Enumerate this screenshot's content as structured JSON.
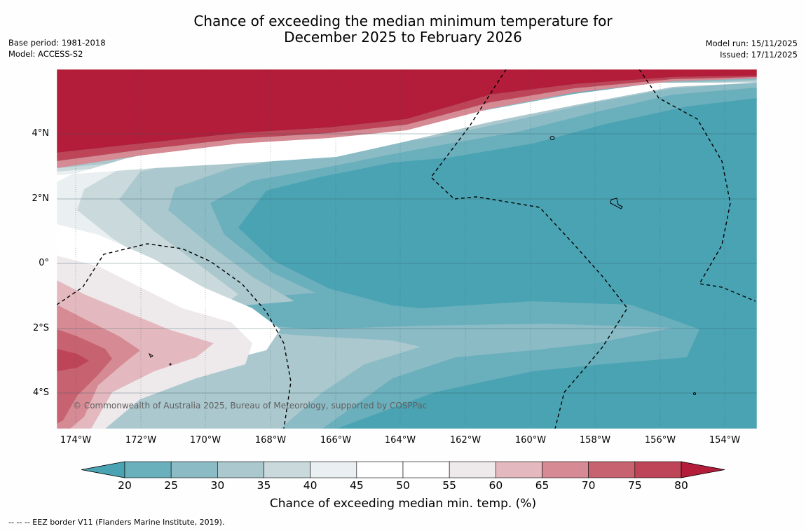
{
  "title": {
    "line1": "Chance of exceeding the median minimum temperature for",
    "line2": "December 2025 to February 2026"
  },
  "meta_left": {
    "base_period": "Base period: 1981-2018",
    "model": "Model: ACCESS-S2"
  },
  "meta_right": {
    "model_run": "Model run: 15/11/2025",
    "issued": "Issued: 17/11/2025"
  },
  "map": {
    "lat_labels": [
      "4°N",
      "2°N",
      "0°",
      "2°S",
      "4°S"
    ],
    "lon_labels": [
      "174°W",
      "172°W",
      "170°W",
      "168°W",
      "166°W",
      "164°W",
      "162°W",
      "160°W",
      "158°W",
      "156°W",
      "154°W"
    ],
    "copyright": "© Commonwealth of Australia 2025, Bureau of Meteorology, supported by COSPPac",
    "colors": {
      "hot": "#b31d3a",
      "cool": "#4aa3b3"
    }
  },
  "colorbar": {
    "labels": [
      "20",
      "25",
      "30",
      "35",
      "40",
      "45",
      "50",
      "55",
      "60",
      "65",
      "70",
      "75",
      "80"
    ],
    "colors": [
      "#4aa3b3",
      "#6aafbc",
      "#8bbbc5",
      "#aac8cd",
      "#c9d9dc",
      "#eaeff1",
      "#ffffff",
      "#ffffff",
      "#eee9eb",
      "#e3b9bf",
      "#d58a94",
      "#c76370",
      "#bd4557",
      "#b31d3a"
    ],
    "title": "Chance of exceeding median min. temp. (%)"
  },
  "footer": "--  --  -- EEZ border V11 (Flanders Marine Institute, 2019)."
}
